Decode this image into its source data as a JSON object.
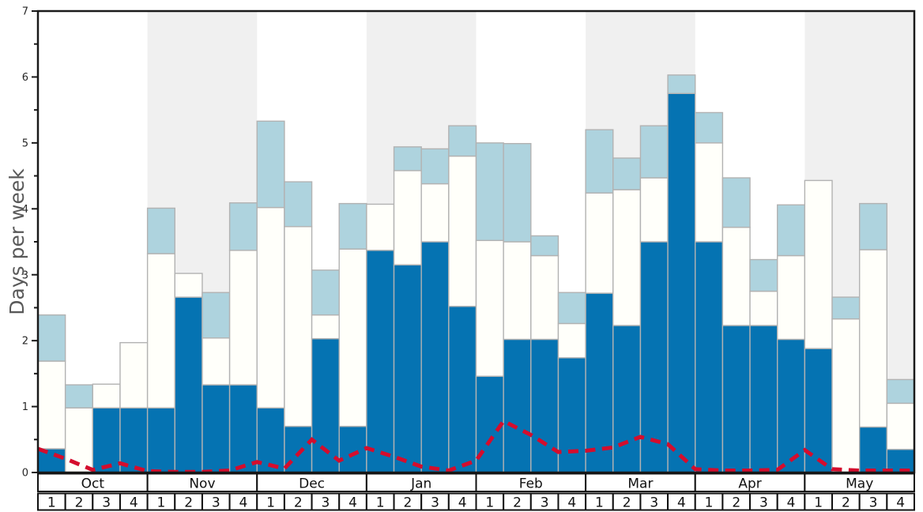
{
  "chart_data": {
    "type": "bar",
    "title": "",
    "xlabel": "",
    "ylabel": "Days per week",
    "ylim": [
      0,
      7
    ],
    "y_tick_labels": [
      "0",
      "1",
      "2",
      "3",
      "4",
      "5",
      "6",
      "7"
    ],
    "y_minor_tick_step": 0.5,
    "grid": false,
    "legend": "none",
    "months": [
      "Oct",
      "Nov",
      "Dec",
      "Jan",
      "Feb",
      "Mar",
      "Apr",
      "May"
    ],
    "shaded_months": [
      "Nov",
      "Jan",
      "Mar",
      "May"
    ],
    "weeks_per_month": 4,
    "week_labels": [
      "1",
      "2",
      "3",
      "4"
    ],
    "stacking": "cumulative_tops_days_per_week",
    "series": [
      {
        "name": "dark-blue-segment",
        "color": "#0573b2",
        "cumulative_top": [
          0.36,
          0.0,
          0.98,
          0.98,
          0.98,
          2.66,
          1.33,
          1.33,
          0.98,
          0.7,
          2.03,
          0.7,
          3.37,
          3.15,
          3.5,
          2.52,
          1.46,
          2.02,
          2.02,
          1.74,
          2.72,
          2.23,
          3.5,
          5.75,
          3.5,
          2.23,
          2.23,
          2.02,
          1.88,
          0.0,
          0.69,
          0.35
        ]
      },
      {
        "name": "white-segment",
        "color": "#fffffa",
        "cumulative_top": [
          1.69,
          0.98,
          1.34,
          1.97,
          3.32,
          3.02,
          2.04,
          3.37,
          4.02,
          3.73,
          2.39,
          3.39,
          4.07,
          4.58,
          4.38,
          4.8,
          3.52,
          3.5,
          3.29,
          2.26,
          4.24,
          4.29,
          4.47,
          5.75,
          5.0,
          3.72,
          2.75,
          3.29,
          4.43,
          2.33,
          3.38,
          1.05
        ]
      },
      {
        "name": "light-blue-segment",
        "color": "#aed3de",
        "cumulative_top": [
          2.39,
          1.33,
          1.34,
          1.97,
          4.01,
          3.02,
          2.73,
          4.09,
          5.33,
          4.41,
          3.07,
          4.08,
          4.07,
          4.94,
          4.91,
          5.26,
          5.0,
          4.99,
          3.59,
          2.73,
          5.2,
          4.77,
          5.26,
          6.03,
          5.46,
          4.47,
          3.23,
          4.06,
          4.43,
          2.66,
          4.08,
          1.41
        ]
      }
    ],
    "line_series": {
      "name": "red-dashed-line",
      "color": "#d40d2d",
      "style": "dashed",
      "x_mode": "week_boundaries",
      "values": [
        0.36,
        0.21,
        0.04,
        0.14,
        0.02,
        0.01,
        0.01,
        0.03,
        0.16,
        0.06,
        0.5,
        0.18,
        0.37,
        0.24,
        0.09,
        0.03,
        0.18,
        0.78,
        0.57,
        0.31,
        0.33,
        0.38,
        0.54,
        0.43,
        0.05,
        0.03,
        0.03,
        0.04,
        0.34,
        0.05,
        0.03,
        0.03,
        0.03
      ]
    },
    "colors": {
      "band_shade": "#f0f0f0",
      "plot_background": "#ffffff",
      "bar_border": "#b2b2b2",
      "axis": "#1a1a1a",
      "tick_label": "#262626",
      "axis_label": "#595959",
      "table_border": "#111111",
      "table_text": "#111111"
    }
  }
}
